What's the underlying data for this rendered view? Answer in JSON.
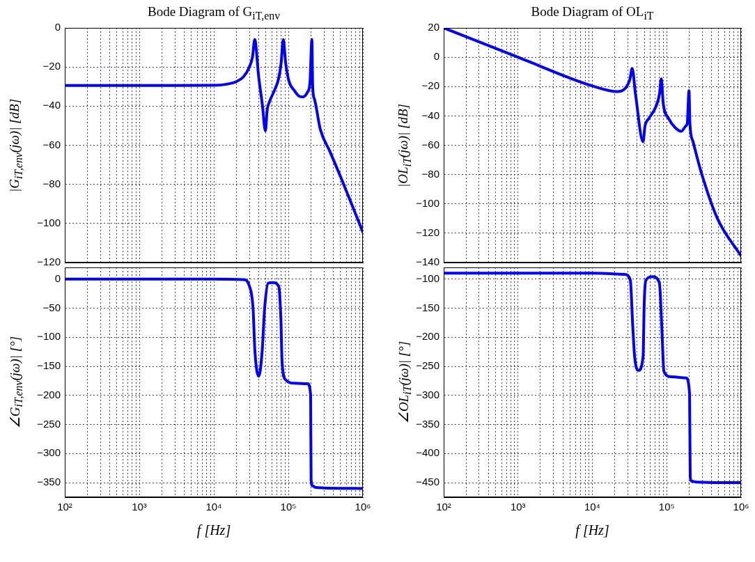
{
  "chart_data": [
    {
      "type": "line",
      "title": "Bode Diagram of G$_{iT,env}$",
      "ylabel": "|G$_{iT,env}$(jω)|    [dB]",
      "log": "x",
      "grid": true,
      "tick_labels": "y",
      "x": [
        100,
        1000,
        10000,
        15000,
        20000,
        25000,
        30000,
        33000,
        35400,
        40000,
        45000,
        49200,
        52000,
        55600,
        65000,
        74000,
        80000,
        85500,
        92000,
        102000,
        120000,
        140000,
        157000,
        180000,
        195000,
        207000,
        212000,
        225000,
        269000,
        358000,
        513000,
        1000000
      ],
      "series": [
        {
          "color": "#0000ff",
          "values": [
            -29.5,
            -29.5,
            -29.4,
            -28.8,
            -27.5,
            -25,
            -20,
            -15,
            -6,
            -25,
            -40,
            -52.7,
            -42,
            -38,
            -32,
            -26,
            -18,
            -6,
            -18,
            -27.3,
            -32,
            -35,
            -35.3,
            -33,
            -28,
            -6,
            -30,
            -36.7,
            -52,
            -62.9,
            -77,
            -104.5
          ]
        }
      ],
      "xlim": [
        100,
        1000000
      ],
      "ylim": [
        -120,
        0
      ],
      "xticks": [
        100,
        200,
        300,
        400,
        500,
        600,
        700,
        800,
        900,
        1000,
        2000,
        3000,
        4000,
        5000,
        6000,
        7000,
        8000,
        9000,
        10000,
        20000,
        30000,
        40000,
        50000,
        60000,
        70000,
        80000,
        90000,
        100000,
        200000,
        300000,
        400000,
        500000,
        600000,
        700000,
        800000,
        900000,
        1000000
      ],
      "yticks": [
        -120,
        -100,
        -80,
        -60,
        -40,
        -20,
        0
      ]
    },
    {
      "type": "line",
      "title": "Bode Diagram of OL$_{iT}$",
      "ylabel": "|OL$_{iT}$(jω)|    [dB]",
      "log": "x",
      "grid": true,
      "tick_labels": "y",
      "x": [
        100,
        1000,
        10000,
        21800,
        28000,
        32000,
        34300,
        38000,
        48100,
        51000,
        57500,
        71400,
        80000,
        84300,
        90000,
        106000,
        130000,
        157000,
        180000,
        189000,
        199500,
        205000,
        226000,
        290000,
        479000,
        1000000
      ],
      "series": [
        {
          "color": "#0000ff",
          "values": [
            20,
            0,
            -19.6,
            -23.5,
            -21,
            -15,
            -7.7,
            -25,
            -57.6,
            -47,
            -41.8,
            -33.8,
            -25,
            -14.8,
            -32,
            -41.8,
            -48,
            -50.5,
            -47,
            -44.9,
            -22.8,
            -45,
            -57.6,
            -78.2,
            -109.8,
            -135.5
          ]
        }
      ],
      "xlim": [
        100,
        1000000
      ],
      "ylim": [
        -140,
        20
      ],
      "xticks": [
        100,
        200,
        300,
        400,
        500,
        600,
        700,
        800,
        900,
        1000,
        2000,
        3000,
        4000,
        5000,
        6000,
        7000,
        8000,
        9000,
        10000,
        20000,
        30000,
        40000,
        50000,
        60000,
        70000,
        80000,
        90000,
        100000,
        200000,
        300000,
        400000,
        500000,
        600000,
        700000,
        800000,
        900000,
        1000000
      ],
      "yticks": [
        -140,
        -120,
        -100,
        -80,
        -60,
        -40,
        -20,
        0,
        20
      ]
    },
    {
      "type": "line",
      "xlabel": "f    [Hz]",
      "ylabel": "∠G$_{iT,env}$(jω)|    [°]",
      "log": "x",
      "grid": true,
      "x": [
        100,
        10000,
        25000,
        30000,
        33600,
        35600,
        40200,
        44500,
        48100,
        53600,
        61600,
        74000,
        79400,
        82400,
        91800,
        122000,
        181600,
        199000,
        202000,
        210000,
        230000,
        300000,
        1000000
      ],
      "series": [
        {
          "color": "#0000ff",
          "values": [
            0,
            0,
            -1,
            -12,
            -50,
            -124,
            -167,
            -124,
            -50,
            -7,
            -6,
            -12,
            -68,
            -143,
            -173,
            -179,
            -180,
            -199,
            -345,
            -355,
            -358,
            -359,
            -360
          ]
        }
      ],
      "xlim": [
        100,
        1000000
      ],
      "ylim": [
        -375,
        20
      ],
      "xticks": [
        {
          "value": 100,
          "label": "10²"
        },
        {
          "value": 200,
          "label": null
        },
        {
          "value": 300,
          "label": null
        },
        {
          "value": 400,
          "label": null
        },
        {
          "value": 500,
          "label": null
        },
        {
          "value": 600,
          "label": null
        },
        {
          "value": 700,
          "label": null
        },
        {
          "value": 800,
          "label": null
        },
        {
          "value": 900,
          "label": null
        },
        {
          "value": 1000,
          "label": "10³"
        },
        {
          "value": 2000,
          "label": null
        },
        {
          "value": 3000,
          "label": null
        },
        {
          "value": 4000,
          "label": null
        },
        {
          "value": 5000,
          "label": null
        },
        {
          "value": 6000,
          "label": null
        },
        {
          "value": 7000,
          "label": null
        },
        {
          "value": 8000,
          "label": null
        },
        {
          "value": 9000,
          "label": null
        },
        {
          "value": 10000,
          "label": "10⁴"
        },
        {
          "value": 20000,
          "label": null
        },
        {
          "value": 30000,
          "label": null
        },
        {
          "value": 40000,
          "label": null
        },
        {
          "value": 50000,
          "label": null
        },
        {
          "value": 60000,
          "label": null
        },
        {
          "value": 70000,
          "label": null
        },
        {
          "value": 80000,
          "label": null
        },
        {
          "value": 90000,
          "label": null
        },
        {
          "value": 100000,
          "label": "10⁵"
        },
        {
          "value": 200000,
          "label": null
        },
        {
          "value": 300000,
          "label": null
        },
        {
          "value": 400000,
          "label": null
        },
        {
          "value": 500000,
          "label": null
        },
        {
          "value": 600000,
          "label": null
        },
        {
          "value": 700000,
          "label": null
        },
        {
          "value": 800000,
          "label": null
        },
        {
          "value": 900000,
          "label": null
        },
        {
          "value": 1000000,
          "label": "10⁶"
        }
      ],
      "yticks": [
        -350,
        -300,
        -250,
        -200,
        -150,
        -100,
        -50,
        0
      ]
    },
    {
      "type": "line",
      "xlabel": "f    [Hz]",
      "ylabel": "∠OL$_{iT}$(jω)|    [°]",
      "log": "x",
      "grid": true,
      "x": [
        100,
        10000,
        27100,
        32400,
        34800,
        37000,
        41700,
        48100,
        49900,
        52500,
        64100,
        79600,
        85500,
        91800,
        114000,
        182000,
        203000,
        207000,
        215000,
        250000,
        1000000
      ],
      "series": [
        {
          "color": "#0000ff",
          "values": [
            -90,
            -90,
            -92,
            -102,
            -177,
            -233,
            -257,
            -233,
            -139,
            -102,
            -96,
            -106,
            -177,
            -259,
            -268,
            -270,
            -297,
            -440,
            -447,
            -449,
            -450
          ]
        }
      ],
      "xlim": [
        100,
        1000000
      ],
      "ylim": [
        -475,
        -80
      ],
      "xticks": [
        {
          "value": 100,
          "label": "10²"
        },
        {
          "value": 200,
          "label": null
        },
        {
          "value": 300,
          "label": null
        },
        {
          "value": 400,
          "label": null
        },
        {
          "value": 500,
          "label": null
        },
        {
          "value": 600,
          "label": null
        },
        {
          "value": 700,
          "label": null
        },
        {
          "value": 800,
          "label": null
        },
        {
          "value": 900,
          "label": null
        },
        {
          "value": 1000,
          "label": "10³"
        },
        {
          "value": 2000,
          "label": null
        },
        {
          "value": 3000,
          "label": null
        },
        {
          "value": 4000,
          "label": null
        },
        {
          "value": 5000,
          "label": null
        },
        {
          "value": 6000,
          "label": null
        },
        {
          "value": 7000,
          "label": null
        },
        {
          "value": 8000,
          "label": null
        },
        {
          "value": 9000,
          "label": null
        },
        {
          "value": 10000,
          "label": "10⁴"
        },
        {
          "value": 20000,
          "label": null
        },
        {
          "value": 30000,
          "label": null
        },
        {
          "value": 40000,
          "label": null
        },
        {
          "value": 50000,
          "label": null
        },
        {
          "value": 60000,
          "label": null
        },
        {
          "value": 70000,
          "label": null
        },
        {
          "value": 80000,
          "label": null
        },
        {
          "value": 90000,
          "label": null
        },
        {
          "value": 100000,
          "label": "10⁵"
        },
        {
          "value": 200000,
          "label": null
        },
        {
          "value": 300000,
          "label": null
        },
        {
          "value": 400000,
          "label": null
        },
        {
          "value": 500000,
          "label": null
        },
        {
          "value": 600000,
          "label": null
        },
        {
          "value": 700000,
          "label": null
        },
        {
          "value": 800000,
          "label": null
        },
        {
          "value": 900000,
          "label": null
        },
        {
          "value": 1000000,
          "label": "10⁶"
        }
      ],
      "yticks": [
        -450,
        -400,
        -350,
        -300,
        -250,
        -200,
        -150,
        -100
      ]
    }
  ]
}
